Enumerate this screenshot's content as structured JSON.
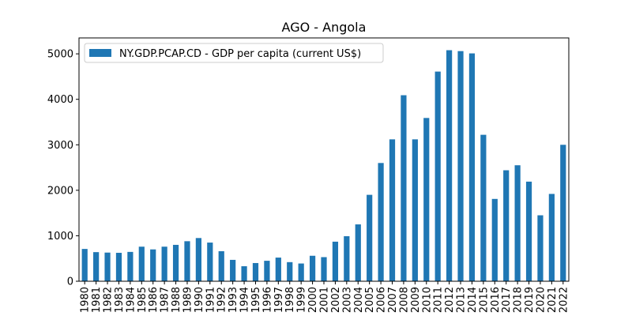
{
  "chart_data": {
    "type": "bar",
    "title": "AGO - Angola",
    "xlabel": "",
    "ylabel": "",
    "ylim": [
      0,
      5350
    ],
    "yticks": [
      0,
      1000,
      2000,
      3000,
      4000,
      5000
    ],
    "grid": false,
    "legend_position": "top-left",
    "color": "#1f77b4",
    "categories": [
      "1980",
      "1981",
      "1982",
      "1983",
      "1984",
      "1985",
      "1986",
      "1987",
      "1988",
      "1989",
      "1990",
      "1991",
      "1992",
      "1993",
      "1994",
      "1995",
      "1996",
      "1997",
      "1998",
      "1999",
      "2000",
      "2001",
      "2002",
      "2003",
      "2004",
      "2005",
      "2006",
      "2007",
      "2008",
      "2009",
      "2010",
      "2011",
      "2012",
      "2013",
      "2014",
      "2015",
      "2016",
      "2017",
      "2018",
      "2019",
      "2020",
      "2021",
      "2022"
    ],
    "series": [
      {
        "name": "NY.GDP.PCAP.CD - GDP per capita (current US$)",
        "values": [
          710,
          640,
          630,
          625,
          645,
          760,
          700,
          760,
          800,
          880,
          950,
          850,
          660,
          470,
          330,
          400,
          450,
          520,
          420,
          390,
          560,
          530,
          870,
          990,
          1250,
          1900,
          2600,
          3120,
          4090,
          3120,
          3590,
          4610,
          5080,
          5060,
          5010,
          3220,
          1810,
          2440,
          2550,
          2190,
          1450,
          1920,
          3000
        ]
      }
    ]
  }
}
